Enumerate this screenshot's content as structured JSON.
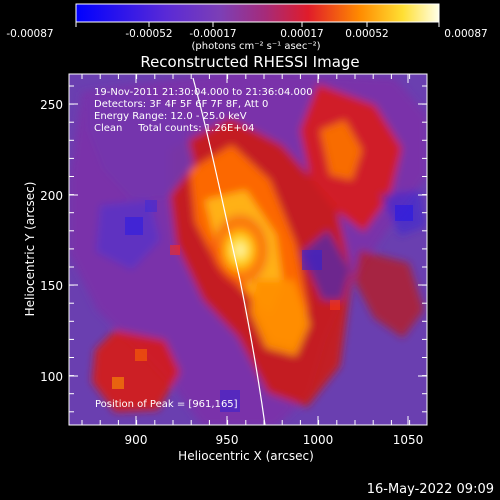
{
  "chart_data": {
    "type": "heatmap",
    "title": "Reconstructed RHESSI Image",
    "xlabel": "Heliocentric X (arcsec)",
    "ylabel": "Heliocentric Y (arcsec)",
    "x_ticks": [
      "900",
      "950",
      "1000",
      "1050"
    ],
    "y_ticks": [
      "100",
      "150",
      "200",
      "250"
    ],
    "colorbar": {
      "tick_labels": [
        "-0.00087",
        "-0.00052",
        "-0.00017",
        "0.00017",
        "0.00052",
        "0.00087"
      ],
      "units_label": "(photons cm⁻² s⁻¹ asec⁻²)"
    },
    "annotations": {
      "time_range": "19-Nov-2011 21:30:04.000 to 21:36:04.000",
      "detectors": "Detectors: 3F 4F 5F 6F 7F 8F, Att 0",
      "energy_range": "Energy Range: 12.0 - 25.0 keV",
      "clean_counts": "Clean     Total counts: 1.26E+04",
      "peak_position": "Position of Peak = [961,165]"
    },
    "footer_timestamp": "16-May-2022 09:09"
  }
}
